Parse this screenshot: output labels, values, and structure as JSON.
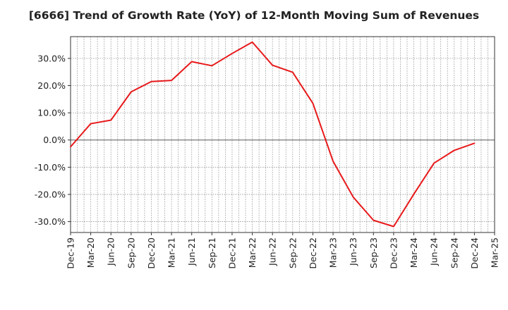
{
  "chart_data": {
    "type": "line",
    "title": "[6666]  Trend of Growth Rate (YoY) of 12-Month Moving Sum of Revenues",
    "xlabel": "",
    "ylabel": "",
    "ylim": [
      -34,
      38
    ],
    "y_ticks": [
      -30,
      -20,
      -10,
      0,
      10,
      20,
      30
    ],
    "y_tick_labels": [
      "-30.0%",
      "-20.0%",
      "-10.0%",
      "0.0%",
      "10.0%",
      "20.0%",
      "30.0%"
    ],
    "x_tick_labels": [
      "Dec-19",
      "Mar-20",
      "Jun-20",
      "Sep-20",
      "Dec-20",
      "Mar-21",
      "Jun-21",
      "Sep-21",
      "Dec-21",
      "Mar-22",
      "Jun-22",
      "Sep-22",
      "Dec-22",
      "Mar-23",
      "Jun-23",
      "Sep-23",
      "Dec-23",
      "Mar-24",
      "Jun-24",
      "Sep-24",
      "Dec-24",
      "Mar-25"
    ],
    "grid": true,
    "line_color": "#e8191b",
    "x": [
      "Dec-19",
      "Mar-20",
      "Jun-20",
      "Sep-20",
      "Dec-20",
      "Mar-21",
      "Jun-21",
      "Sep-21",
      "Dec-21",
      "Mar-22",
      "Jun-22",
      "Sep-22",
      "Dec-22",
      "Mar-23",
      "Jun-23",
      "Sep-23",
      "Dec-23",
      "Mar-24",
      "Jun-24",
      "Sep-24",
      "Dec-24"
    ],
    "values": [
      -2.5,
      6.0,
      7.3,
      17.7,
      21.5,
      21.9,
      28.8,
      27.3,
      31.8,
      36.0,
      27.5,
      24.9,
      13.5,
      -7.8,
      -21.0,
      -29.5,
      -31.8,
      -19.9,
      -8.5,
      -3.8,
      -1.2
    ]
  }
}
